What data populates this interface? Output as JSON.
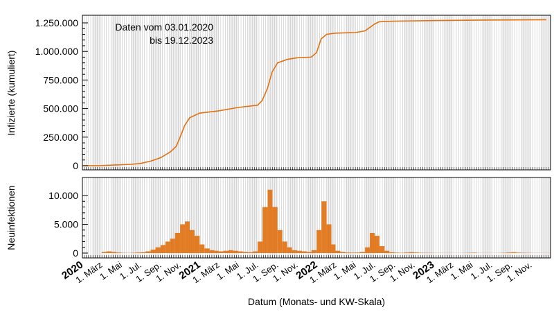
{
  "chart_data": [
    {
      "type": "line",
      "ylabel": "Infizierte (kumuliert)",
      "annotation": [
        "Daten vom 03.01.2020",
        "bis 19.12.2023"
      ],
      "ylim": [
        0,
        1300000
      ],
      "yticks": [
        0,
        250000,
        500000,
        750000,
        1000000,
        1250000
      ],
      "ytick_labels": [
        "0",
        "250.000",
        "500.000",
        "750.000",
        "1.000.000",
        "1.250.000"
      ],
      "color": "#e07010",
      "grid": true,
      "x": [
        "2020-01-03",
        "2020-03-01",
        "2020-04-01",
        "2020-06-01",
        "2020-07-01",
        "2020-08-01",
        "2020-09-01",
        "2020-10-01",
        "2020-10-20",
        "2020-11-01",
        "2020-11-15",
        "2020-12-01",
        "2021-01-01",
        "2021-03-01",
        "2021-05-01",
        "2021-07-01",
        "2021-07-15",
        "2021-08-01",
        "2021-08-15",
        "2021-09-01",
        "2021-10-01",
        "2021-11-01",
        "2021-12-15",
        "2022-01-01",
        "2022-01-15",
        "2022-02-01",
        "2022-03-01",
        "2022-05-01",
        "2022-06-01",
        "2022-07-01",
        "2022-07-15",
        "2022-09-01",
        "2023-01-01",
        "2023-06-01",
        "2023-12-19"
      ],
      "y": [
        0,
        1000,
        5000,
        12000,
        20000,
        40000,
        70000,
        120000,
        170000,
        250000,
        350000,
        420000,
        460000,
        480000,
        510000,
        530000,
        570000,
        680000,
        820000,
        900000,
        930000,
        945000,
        950000,
        990000,
        1110000,
        1150000,
        1160000,
        1165000,
        1180000,
        1240000,
        1260000,
        1265000,
        1270000,
        1275000,
        1278000
      ]
    },
    {
      "type": "bar",
      "ylabel": "Neuinfektionen",
      "xlabel": "Datum (Monats- und KW-Skala)",
      "ylim": [
        0,
        13000
      ],
      "yticks": [
        0,
        5000,
        10000
      ],
      "ytick_labels": [
        "0",
        "5.000",
        "10.000"
      ],
      "color": "#e07010",
      "x_start": "2020-01-01",
      "x_interval": "half-month",
      "values": [
        0,
        0,
        0,
        0,
        200,
        300,
        200,
        100,
        50,
        30,
        50,
        100,
        150,
        300,
        600,
        1000,
        1400,
        2000,
        2500,
        3500,
        5000,
        5500,
        4000,
        3000,
        1500,
        800,
        500,
        400,
        300,
        400,
        500,
        400,
        300,
        200,
        150,
        300,
        2000,
        8000,
        11000,
        8000,
        4000,
        2000,
        1000,
        500,
        400,
        300,
        200,
        500,
        4000,
        9000,
        5000,
        1500,
        400,
        200,
        100,
        80,
        100,
        200,
        1000,
        3500,
        3000,
        1200,
        400,
        150,
        80,
        50,
        100,
        150,
        100,
        60,
        50,
        40,
        30,
        30,
        20,
        20,
        20,
        20,
        30,
        50,
        80,
        30,
        20,
        20,
        20,
        30,
        50,
        100,
        150,
        80,
        60,
        40,
        30,
        30,
        20,
        20
      ]
    }
  ],
  "xaxis": {
    "labels": [
      {
        "date": "2020-01-01",
        "text": "2020",
        "bold": true
      },
      {
        "date": "2020-03-01",
        "text": "1. März"
      },
      {
        "date": "2020-05-01",
        "text": "1. Mai"
      },
      {
        "date": "2020-07-01",
        "text": "1. Jul."
      },
      {
        "date": "2020-09-01",
        "text": "1. Sep."
      },
      {
        "date": "2020-11-01",
        "text": "1. Nov."
      },
      {
        "date": "2021-01-01",
        "text": "2021",
        "bold": true
      },
      {
        "date": "2021-03-01",
        "text": "1. März"
      },
      {
        "date": "2021-05-01",
        "text": "1. Mai"
      },
      {
        "date": "2021-07-01",
        "text": "1. Jul."
      },
      {
        "date": "2021-09-01",
        "text": "1. Sep."
      },
      {
        "date": "2021-11-01",
        "text": "1. Nov."
      },
      {
        "date": "2022-01-01",
        "text": "2022",
        "bold": true
      },
      {
        "date": "2022-03-01",
        "text": "1. März"
      },
      {
        "date": "2022-05-01",
        "text": "1. Mai"
      },
      {
        "date": "2022-07-01",
        "text": "1. Jul."
      },
      {
        "date": "2022-09-01",
        "text": "1. Sep."
      },
      {
        "date": "2022-11-01",
        "text": "1. Nov."
      },
      {
        "date": "2023-01-01",
        "text": "2023",
        "bold": true
      },
      {
        "date": "2023-03-01",
        "text": "1. März"
      },
      {
        "date": "2023-05-01",
        "text": "1. Mai"
      },
      {
        "date": "2023-07-01",
        "text": "1. Jul."
      },
      {
        "date": "2023-09-01",
        "text": "1. Sep."
      },
      {
        "date": "2023-11-01",
        "text": "1. Nov."
      }
    ],
    "range": [
      "2020-01-01",
      "2024-01-01"
    ]
  }
}
